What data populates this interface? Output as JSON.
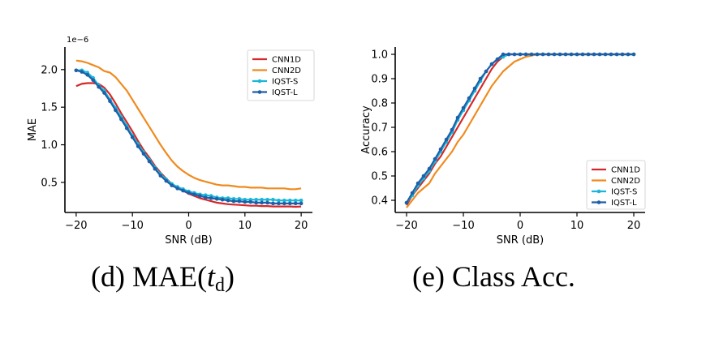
{
  "colors": {
    "CNN1D": "#d62728",
    "CNN2D": "#f08a1e",
    "IQST-S": "#1ab8d8",
    "IQST-L": "#1f5fa8"
  },
  "chart_data": [
    {
      "type": "line",
      "title": "",
      "xlabel": "SNR (dB)",
      "ylabel": "MAE",
      "y_offset_text": "1e−6",
      "xlim": [
        -22,
        22
      ],
      "ylim": [
        0.1,
        2.3
      ],
      "xticks": [
        -20,
        -10,
        0,
        10,
        20
      ],
      "yticks": [
        0.5,
        1.0,
        1.5,
        2.0
      ],
      "xtick_labels": [
        "−20",
        "−10",
        "0",
        "10",
        "20"
      ],
      "ytick_labels": [
        "0.5",
        "1.0",
        "1.5",
        "2.0"
      ],
      "grid": false,
      "legend": "top-right",
      "x": [
        -20,
        -19,
        -18,
        -17,
        -16,
        -15,
        -14,
        -13,
        -12,
        -11,
        -10,
        -9,
        -8,
        -7,
        -6,
        -5,
        -4,
        -3,
        -2,
        -1,
        0,
        1,
        2,
        3,
        4,
        5,
        6,
        7,
        8,
        9,
        10,
        11,
        12,
        13,
        14,
        15,
        16,
        17,
        18,
        19,
        20
      ],
      "series": [
        {
          "name": "CNN1D",
          "markers": false,
          "values": [
            1.78,
            1.81,
            1.82,
            1.82,
            1.81,
            1.76,
            1.67,
            1.55,
            1.42,
            1.3,
            1.18,
            1.05,
            0.93,
            0.83,
            0.72,
            0.63,
            0.55,
            0.48,
            0.43,
            0.39,
            0.35,
            0.32,
            0.29,
            0.27,
            0.25,
            0.23,
            0.22,
            0.21,
            0.205,
            0.2,
            0.195,
            0.19,
            0.19,
            0.185,
            0.185,
            0.18,
            0.18,
            0.18,
            0.18,
            0.175,
            0.18
          ]
        },
        {
          "name": "CNN2D",
          "markers": false,
          "values": [
            2.12,
            2.11,
            2.09,
            2.06,
            2.03,
            1.98,
            1.96,
            1.9,
            1.81,
            1.72,
            1.6,
            1.48,
            1.36,
            1.24,
            1.12,
            1.0,
            0.89,
            0.79,
            0.71,
            0.65,
            0.6,
            0.56,
            0.53,
            0.51,
            0.49,
            0.47,
            0.46,
            0.46,
            0.45,
            0.44,
            0.44,
            0.43,
            0.43,
            0.43,
            0.42,
            0.42,
            0.42,
            0.42,
            0.41,
            0.41,
            0.42
          ]
        },
        {
          "name": "IQST-S",
          "markers": true,
          "values": [
            1.99,
            1.99,
            1.96,
            1.89,
            1.79,
            1.72,
            1.6,
            1.49,
            1.37,
            1.25,
            1.12,
            1.01,
            0.9,
            0.8,
            0.7,
            0.61,
            0.54,
            0.48,
            0.44,
            0.41,
            0.38,
            0.36,
            0.34,
            0.33,
            0.32,
            0.3,
            0.29,
            0.29,
            0.28,
            0.28,
            0.27,
            0.27,
            0.27,
            0.27,
            0.27,
            0.27,
            0.26,
            0.26,
            0.26,
            0.26,
            0.26
          ]
        },
        {
          "name": "IQST-L",
          "markers": true,
          "values": [
            1.99,
            1.97,
            1.93,
            1.86,
            1.77,
            1.69,
            1.58,
            1.46,
            1.34,
            1.22,
            1.1,
            0.98,
            0.88,
            0.78,
            0.68,
            0.59,
            0.52,
            0.46,
            0.42,
            0.39,
            0.36,
            0.34,
            0.32,
            0.3,
            0.29,
            0.28,
            0.27,
            0.26,
            0.25,
            0.25,
            0.24,
            0.24,
            0.23,
            0.23,
            0.23,
            0.22,
            0.22,
            0.22,
            0.22,
            0.22,
            0.22
          ]
        }
      ]
    },
    {
      "type": "line",
      "title": "",
      "xlabel": "SNR (dB)",
      "ylabel": "Accuracy",
      "xlim": [
        -22,
        22
      ],
      "ylim": [
        0.35,
        1.03
      ],
      "xticks": [
        -20,
        -10,
        0,
        10,
        20
      ],
      "yticks": [
        0.4,
        0.5,
        0.6,
        0.7,
        0.8,
        0.9,
        1.0
      ],
      "xtick_labels": [
        "−20",
        "−10",
        "0",
        "10",
        "20"
      ],
      "ytick_labels": [
        "0.4",
        "0.5",
        "0.6",
        "0.7",
        "0.8",
        "0.9",
        "1.0"
      ],
      "grid": false,
      "legend": "bottom-right",
      "x": [
        -20,
        -19,
        -18,
        -17,
        -16,
        -15,
        -14,
        -13,
        -12,
        -11,
        -10,
        -9,
        -8,
        -7,
        -6,
        -5,
        -4,
        -3,
        -2,
        -1,
        0,
        1,
        2,
        3,
        4,
        5,
        6,
        7,
        8,
        9,
        10,
        11,
        12,
        13,
        14,
        15,
        16,
        17,
        18,
        19,
        20
      ],
      "series": [
        {
          "name": "CNN1D",
          "markers": false,
          "values": [
            0.38,
            0.42,
            0.45,
            0.48,
            0.51,
            0.55,
            0.58,
            0.62,
            0.66,
            0.7,
            0.74,
            0.78,
            0.82,
            0.86,
            0.9,
            0.94,
            0.97,
            0.99,
            1.0,
            1.0,
            1.0,
            1.0,
            1.0,
            1.0,
            1.0,
            1.0,
            1.0,
            1.0,
            1.0,
            1.0,
            1.0,
            1.0,
            1.0,
            1.0,
            1.0,
            1.0,
            1.0,
            1.0,
            1.0,
            1.0,
            1.0
          ]
        },
        {
          "name": "CNN2D",
          "markers": false,
          "values": [
            0.37,
            0.4,
            0.43,
            0.45,
            0.47,
            0.51,
            0.54,
            0.57,
            0.6,
            0.64,
            0.67,
            0.71,
            0.75,
            0.79,
            0.83,
            0.87,
            0.9,
            0.93,
            0.95,
            0.97,
            0.98,
            0.99,
            0.995,
            1.0,
            1.0,
            1.0,
            1.0,
            1.0,
            1.0,
            1.0,
            1.0,
            1.0,
            1.0,
            1.0,
            1.0,
            1.0,
            1.0,
            1.0,
            1.0,
            1.0,
            1.0
          ]
        },
        {
          "name": "IQST-S",
          "markers": true,
          "values": [
            0.39,
            0.42,
            0.46,
            0.49,
            0.52,
            0.56,
            0.6,
            0.64,
            0.68,
            0.73,
            0.77,
            0.81,
            0.85,
            0.89,
            0.93,
            0.96,
            0.98,
            0.99,
            1.0,
            1.0,
            1.0,
            1.0,
            1.0,
            1.0,
            1.0,
            1.0,
            1.0,
            1.0,
            1.0,
            1.0,
            1.0,
            1.0,
            1.0,
            1.0,
            1.0,
            1.0,
            1.0,
            1.0,
            1.0,
            1.0,
            1.0
          ]
        },
        {
          "name": "IQST-L",
          "markers": true,
          "values": [
            0.39,
            0.43,
            0.47,
            0.5,
            0.53,
            0.57,
            0.61,
            0.65,
            0.69,
            0.74,
            0.78,
            0.82,
            0.86,
            0.9,
            0.93,
            0.96,
            0.98,
            1.0,
            1.0,
            1.0,
            1.0,
            1.0,
            1.0,
            1.0,
            1.0,
            1.0,
            1.0,
            1.0,
            1.0,
            1.0,
            1.0,
            1.0,
            1.0,
            1.0,
            1.0,
            1.0,
            1.0,
            1.0,
            1.0,
            1.0,
            1.0
          ]
        }
      ]
    }
  ],
  "captions": {
    "d": {
      "prefix": "(d) MAE(",
      "var": "t",
      "sub": "d",
      "suffix": ")"
    },
    "e": {
      "text": "(e) Class Acc."
    }
  }
}
